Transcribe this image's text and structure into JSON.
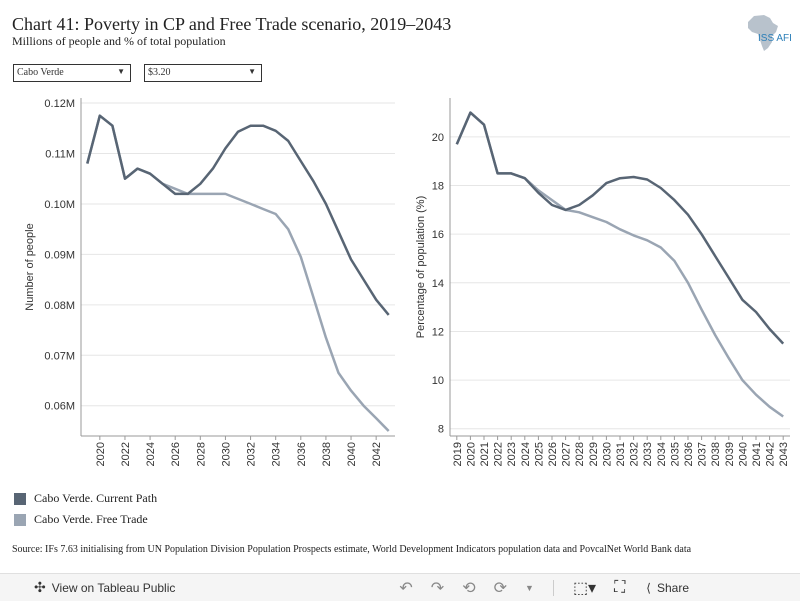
{
  "header": {
    "title": "Chart 41: Poverty in CP and Free Trade scenario, 2019–2043",
    "subtitle": "Millions of people and % of total population",
    "logo_text": "ISS AFI"
  },
  "filters": {
    "country": "Cabo Verde",
    "poverty_line": "$3.20"
  },
  "colors": {
    "current_path": "#586574",
    "free_trade": "#9aa5b3"
  },
  "legend": [
    {
      "label": "Cabo Verde. Current Path",
      "color": "#586574"
    },
    {
      "label": "Cabo Verde. Free Trade",
      "color": "#9aa5b3"
    }
  ],
  "source": "Source: IFs 7.63 initialising from UN Population Division Population Prospects estimate, World Development Indicators population data and PovcalNet World Bank data",
  "toolbar": {
    "view_label": "View on Tableau Public",
    "share_label": "Share"
  },
  "chart_data": [
    {
      "type": "line",
      "ylabel": "Number of people",
      "ylim": [
        0.054,
        0.121
      ],
      "yticks": [
        0.06,
        0.07,
        0.08,
        0.09,
        0.1,
        0.11,
        0.12
      ],
      "ytick_labels": [
        "0.06M",
        "0.07M",
        "0.08M",
        "0.09M",
        "0.10M",
        "0.11M",
        "0.12M"
      ],
      "xlim": [
        2018.5,
        2043.5
      ],
      "xticks": [
        2020,
        2022,
        2024,
        2026,
        2028,
        2030,
        2032,
        2034,
        2036,
        2038,
        2040,
        2042
      ],
      "grid": "horizontal",
      "x": [
        2019,
        2020,
        2021,
        2022,
        2023,
        2024,
        2025,
        2026,
        2027,
        2028,
        2029,
        2030,
        2031,
        2032,
        2033,
        2034,
        2035,
        2036,
        2037,
        2038,
        2039,
        2040,
        2041,
        2042,
        2043
      ],
      "series": [
        {
          "name": "Cabo Verde. Current Path",
          "values": [
            0.108,
            0.1175,
            0.1155,
            0.105,
            0.107,
            0.106,
            0.104,
            0.102,
            0.102,
            0.104,
            0.107,
            0.111,
            0.1143,
            0.1155,
            0.1155,
            0.1145,
            0.1125,
            0.1085,
            0.1045,
            0.1,
            0.0945,
            0.089,
            0.085,
            0.081,
            0.078
          ]
        },
        {
          "name": "Cabo Verde. Free Trade",
          "values": [
            0.108,
            0.1175,
            0.1155,
            0.105,
            0.107,
            0.106,
            0.104,
            0.103,
            0.102,
            0.102,
            0.102,
            0.102,
            0.101,
            0.1,
            0.099,
            0.098,
            0.095,
            0.0895,
            0.0815,
            0.0735,
            0.0665,
            0.063,
            0.06,
            0.0575,
            0.055
          ]
        }
      ]
    },
    {
      "type": "line",
      "ylabel": "Percentage of population (%)",
      "ylim": [
        7.7,
        21.6
      ],
      "yticks": [
        8,
        10,
        12,
        14,
        16,
        18,
        20
      ],
      "ytick_labels": [
        "8",
        "10",
        "12",
        "14",
        "16",
        "18",
        "20"
      ],
      "xlim": [
        2018.5,
        2043.5
      ],
      "xticks": [
        2019,
        2020,
        2021,
        2022,
        2023,
        2024,
        2025,
        2026,
        2027,
        2028,
        2029,
        2030,
        2031,
        2032,
        2033,
        2034,
        2035,
        2036,
        2037,
        2038,
        2039,
        2040,
        2041,
        2042,
        2043
      ],
      "grid": "horizontal",
      "x": [
        2019,
        2020,
        2021,
        2022,
        2023,
        2024,
        2025,
        2026,
        2027,
        2028,
        2029,
        2030,
        2031,
        2032,
        2033,
        2034,
        2035,
        2036,
        2037,
        2038,
        2039,
        2040,
        2041,
        2042,
        2043
      ],
      "series": [
        {
          "name": "Cabo Verde. Current Path",
          "values": [
            19.7,
            21.0,
            20.5,
            18.5,
            18.5,
            18.3,
            17.7,
            17.2,
            17.0,
            17.2,
            17.6,
            18.1,
            18.3,
            18.35,
            18.25,
            17.9,
            17.4,
            16.8,
            16.0,
            15.1,
            14.2,
            13.3,
            12.8,
            12.1,
            11.5
          ]
        },
        {
          "name": "Cabo Verde. Free Trade",
          "values": [
            19.7,
            21.0,
            20.5,
            18.5,
            18.5,
            18.3,
            17.8,
            17.4,
            17.0,
            16.9,
            16.7,
            16.5,
            16.2,
            15.95,
            15.75,
            15.45,
            14.9,
            14.0,
            12.9,
            11.85,
            10.9,
            10.0,
            9.4,
            8.9,
            8.5
          ]
        }
      ]
    }
  ]
}
